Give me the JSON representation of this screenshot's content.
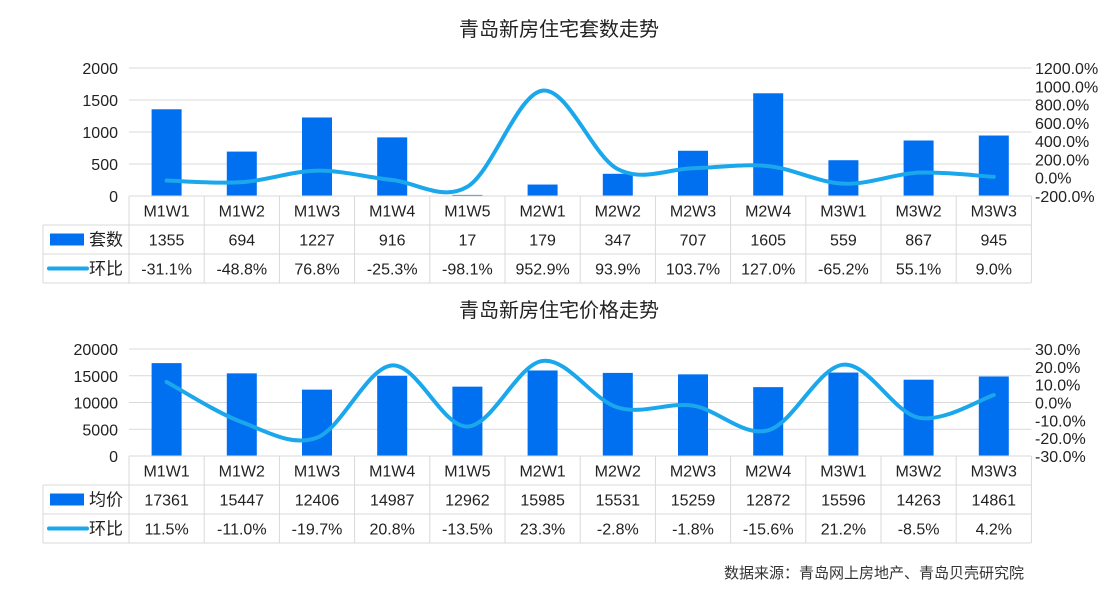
{
  "colors": {
    "bar": "#0070F0",
    "line": "#1AA7EC",
    "grid": "#D9D9D9",
    "text": "#222222",
    "source": "#333333"
  },
  "source_note": "数据来源：青岛网上房地产、青岛贝壳研究院",
  "chart_data": [
    {
      "type": "bar",
      "title": "青岛新房住宅套数走势",
      "categories": [
        "M1W1",
        "M1W2",
        "M1W3",
        "M1W4",
        "M1W5",
        "M2W1",
        "M2W2",
        "M2W3",
        "M2W4",
        "M3W1",
        "M3W2",
        "M3W3"
      ],
      "series": [
        {
          "name": "套数",
          "type": "bar",
          "axis": "left",
          "values": [
            1355,
            694,
            1227,
            916,
            17,
            179,
            347,
            707,
            1605,
            559,
            867,
            945
          ]
        },
        {
          "name": "环比",
          "type": "line",
          "axis": "right",
          "values": [
            -31.1,
            -48.8,
            76.8,
            -25.3,
            -98.1,
            952.9,
            93.9,
            103.7,
            127.0,
            -65.2,
            55.1,
            9.0
          ]
        }
      ],
      "left_ticks": [
        "2000",
        "1500",
        "1000",
        "500",
        "0"
      ],
      "right_ticks": [
        "1200.0%",
        "1000.0%",
        "800.0%",
        "600.0%",
        "400.0%",
        "200.0%",
        "0.0%",
        "-200.0%"
      ],
      "ylim_left": [
        0,
        2000
      ],
      "ylim_right": [
        -200,
        1200
      ],
      "table_rows": [
        {
          "name": "套数",
          "cells": [
            "1355",
            "694",
            "1227",
            "916",
            "17",
            "179",
            "347",
            "707",
            "1605",
            "559",
            "867",
            "945"
          ]
        },
        {
          "name": "环比",
          "cells": [
            "-31.1%",
            "-48.8%",
            "76.8%",
            "-25.3%",
            "-98.1%",
            "952.9%",
            "93.9%",
            "103.7%",
            "127.0%",
            "-65.2%",
            "55.1%",
            "9.0%"
          ]
        }
      ]
    },
    {
      "type": "bar",
      "title": "青岛新房住宅价格走势",
      "categories": [
        "M1W1",
        "M1W2",
        "M1W3",
        "M1W4",
        "M1W5",
        "M2W1",
        "M2W2",
        "M2W3",
        "M2W4",
        "M3W1",
        "M3W2",
        "M3W3"
      ],
      "series": [
        {
          "name": "均价",
          "type": "bar",
          "axis": "left",
          "values": [
            17361,
            15447,
            12406,
            14987,
            12962,
            15985,
            15531,
            15259,
            12872,
            15596,
            14263,
            14861
          ]
        },
        {
          "name": "环比",
          "type": "line",
          "axis": "right",
          "values": [
            11.5,
            -11.0,
            -19.7,
            20.8,
            -13.5,
            23.3,
            -2.8,
            -1.8,
            -15.6,
            21.2,
            -8.5,
            4.2
          ]
        }
      ],
      "left_ticks": [
        "20000",
        "15000",
        "10000",
        "5000",
        "0"
      ],
      "right_ticks": [
        "30.0%",
        "20.0%",
        "10.0%",
        "0.0%",
        "-10.0%",
        "-20.0%",
        "-30.0%"
      ],
      "ylim_left": [
        0,
        20000
      ],
      "ylim_right": [
        -30,
        30
      ],
      "table_rows": [
        {
          "name": "均价",
          "cells": [
            "17361",
            "15447",
            "12406",
            "14987",
            "12962",
            "15985",
            "15531",
            "15259",
            "12872",
            "15596",
            "14263",
            "14861"
          ]
        },
        {
          "name": "环比",
          "cells": [
            "11.5%",
            "-11.0%",
            "-19.7%",
            "20.8%",
            "-13.5%",
            "23.3%",
            "-2.8%",
            "-1.8%",
            "-15.6%",
            "21.2%",
            "-8.5%",
            "4.2%"
          ]
        }
      ]
    }
  ]
}
